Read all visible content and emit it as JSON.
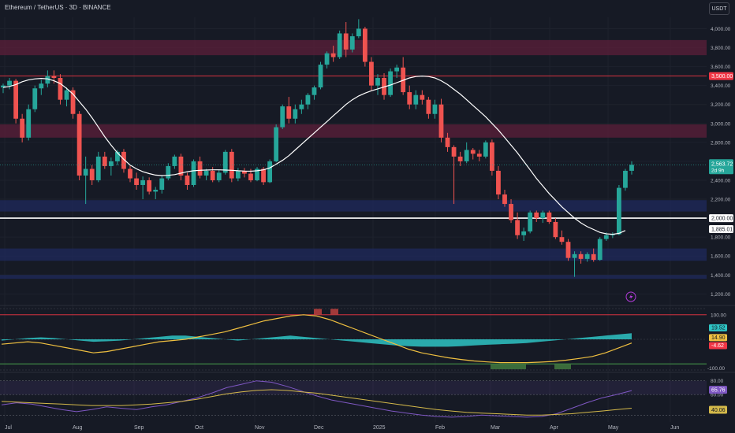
{
  "header": {
    "title": "Ethereum / TetherUS · 3D · BINANCE",
    "currency_button": "USDT"
  },
  "colors": {
    "background": "#161a25",
    "up": "#26a69a",
    "down": "#ef5350",
    "ma_line": "#ffffff",
    "supply_zone": "#5c1f3a",
    "demand_zone": "#1f2a5c",
    "oscillator_signal": "#f0c040",
    "oscillator_hist": "#2ec4c4",
    "rsi_line": "#7e57c2",
    "rsi_ma": "#d4b94a"
  },
  "chart_data": [
    {
      "type": "candlestick",
      "pane": "price",
      "x_tick_labels": [
        "Jul",
        "Aug",
        "Sep",
        "Oct",
        "Nov",
        "Dec",
        "2025",
        "Feb",
        "Mar",
        "Apr",
        "May",
        "Jun"
      ],
      "y_tick_labels": [
        "4,000.00",
        "3,800.00",
        "3,600.00",
        "3,400.00",
        "3,200.00",
        "3,000.00",
        "2,800.00",
        "2,600.00",
        "2,400.00",
        "2,200.00",
        "2,000.00",
        "1,800.00",
        "1,600.00",
        "1,400.00",
        "1,200.00"
      ],
      "y_ticks": [
        4000,
        3800,
        3600,
        3400,
        3200,
        3000,
        2800,
        2600,
        2400,
        2200,
        2000,
        1800,
        1600,
        1400,
        1200
      ],
      "ylim": [
        1120,
        4120
      ],
      "candles": [
        [
          3380,
          3420,
          3320,
          3400
        ],
        [
          3400,
          3480,
          3360,
          3450
        ],
        [
          3450,
          3470,
          3000,
          3050
        ],
        [
          3050,
          3100,
          2800,
          2850
        ],
        [
          2850,
          3200,
          2820,
          3150
        ],
        [
          3150,
          3400,
          3120,
          3370
        ],
        [
          3370,
          3460,
          3300,
          3420
        ],
        [
          3420,
          3560,
          3380,
          3500
        ],
        [
          3500,
          3560,
          3420,
          3480
        ],
        [
          3480,
          3520,
          3200,
          3250
        ],
        [
          3250,
          3380,
          3180,
          3350
        ],
        [
          3350,
          3380,
          3050,
          3100
        ],
        [
          3100,
          3130,
          2400,
          2450
        ],
        [
          2450,
          2650,
          2150,
          2520
        ],
        [
          2520,
          2560,
          2350,
          2400
        ],
        [
          2400,
          2700,
          2380,
          2650
        ],
        [
          2650,
          2700,
          2520,
          2550
        ],
        [
          2550,
          2640,
          2450,
          2600
        ],
        [
          2600,
          2720,
          2560,
          2700
        ],
        [
          2700,
          2730,
          2480,
          2520
        ],
        [
          2520,
          2560,
          2380,
          2420
        ],
        [
          2420,
          2480,
          2300,
          2350
        ],
        [
          2350,
          2440,
          2200,
          2400
        ],
        [
          2400,
          2430,
          2250,
          2280
        ],
        [
          2280,
          2330,
          2200,
          2300
        ],
        [
          2300,
          2450,
          2260,
          2420
        ],
        [
          2420,
          2580,
          2400,
          2550
        ],
        [
          2550,
          2670,
          2520,
          2650
        ],
        [
          2650,
          2680,
          2400,
          2450
        ],
        [
          2450,
          2480,
          2300,
          2350
        ],
        [
          2350,
          2620,
          2330,
          2600
        ],
        [
          2600,
          2650,
          2420,
          2450
        ],
        [
          2450,
          2520,
          2400,
          2500
        ],
        [
          2500,
          2540,
          2380,
          2400
        ],
        [
          2400,
          2510,
          2380,
          2480
        ],
        [
          2480,
          2720,
          2460,
          2700
        ],
        [
          2700,
          2730,
          2380,
          2420
        ],
        [
          2420,
          2530,
          2390,
          2500
        ],
        [
          2500,
          2530,
          2430,
          2470
        ],
        [
          2470,
          2520,
          2380,
          2400
        ],
        [
          2400,
          2540,
          2390,
          2520
        ],
        [
          2520,
          2540,
          2350,
          2380
        ],
        [
          2380,
          2620,
          2370,
          2600
        ],
        [
          2600,
          2990,
          2590,
          2960
        ],
        [
          2960,
          3200,
          2940,
          3180
        ],
        [
          3180,
          3280,
          3000,
          3050
        ],
        [
          3050,
          3200,
          3000,
          3150
        ],
        [
          3150,
          3250,
          3100,
          3200
        ],
        [
          3200,
          3320,
          3150,
          3300
        ],
        [
          3300,
          3400,
          3250,
          3380
        ],
        [
          3380,
          3650,
          3360,
          3620
        ],
        [
          3620,
          3760,
          3580,
          3740
        ],
        [
          3740,
          3820,
          3650,
          3700
        ],
        [
          3700,
          3980,
          3680,
          3950
        ],
        [
          3950,
          4070,
          3700,
          3780
        ],
        [
          3780,
          3950,
          3750,
          3920
        ],
        [
          3920,
          4100,
          3900,
          4000
        ],
        [
          4000,
          4020,
          3600,
          3650
        ],
        [
          3650,
          3700,
          3350,
          3400
        ],
        [
          3400,
          3520,
          3300,
          3480
        ],
        [
          3480,
          3530,
          3250,
          3300
        ],
        [
          3300,
          3580,
          3280,
          3550
        ],
        [
          3550,
          3620,
          3480,
          3590
        ],
        [
          3590,
          3700,
          3300,
          3330
        ],
        [
          3330,
          3400,
          3150,
          3200
        ],
        [
          3200,
          3350,
          3150,
          3300
        ],
        [
          3300,
          3350,
          3200,
          3250
        ],
        [
          3250,
          3280,
          3050,
          3100
        ],
        [
          3100,
          3250,
          3050,
          3200
        ],
        [
          3200,
          3260,
          2800,
          2850
        ],
        [
          2850,
          2900,
          2700,
          2750
        ],
        [
          2750,
          2770,
          2150,
          2650
        ],
        [
          2650,
          2700,
          2550,
          2600
        ],
        [
          2600,
          2800,
          2580,
          2720
        ],
        [
          2720,
          2740,
          2620,
          2680
        ],
        [
          2680,
          2720,
          2600,
          2650
        ],
        [
          2650,
          2820,
          2630,
          2800
        ],
        [
          2800,
          2830,
          2450,
          2500
        ],
        [
          2500,
          2550,
          2200,
          2250
        ],
        [
          2250,
          2300,
          2120,
          2150
        ],
        [
          2150,
          2200,
          1950,
          1980
        ],
        [
          1980,
          2060,
          1780,
          1820
        ],
        [
          1820,
          1900,
          1760,
          1860
        ],
        [
          1860,
          2080,
          1840,
          2060
        ],
        [
          2060,
          2080,
          1960,
          2000
        ],
        [
          2000,
          2080,
          1950,
          2060
        ],
        [
          2060,
          2080,
          1940,
          1960
        ],
        [
          1960,
          2000,
          1780,
          1800
        ],
        [
          1800,
          1870,
          1720,
          1750
        ],
        [
          1750,
          1780,
          1550,
          1580
        ],
        [
          1580,
          1650,
          1380,
          1620
        ],
        [
          1620,
          1650,
          1520,
          1570
        ],
        [
          1570,
          1640,
          1540,
          1620
        ],
        [
          1620,
          1680,
          1540,
          1560
        ],
        [
          1560,
          1800,
          1550,
          1780
        ],
        [
          1780,
          1850,
          1760,
          1820
        ],
        [
          1820,
          1850,
          1790,
          1830
        ],
        [
          1830,
          2350,
          1820,
          2320
        ],
        [
          2320,
          2520,
          2290,
          2500
        ],
        [
          2500,
          2600,
          2460,
          2563.72
        ]
      ],
      "moving_average": [
        3380,
        3390,
        3410,
        3440,
        3460,
        3470,
        3475,
        3470,
        3450,
        3420,
        3370,
        3310,
        3230,
        3150,
        3060,
        2960,
        2860,
        2770,
        2690,
        2620,
        2560,
        2520,
        2490,
        2470,
        2455,
        2450,
        2452,
        2460,
        2475,
        2490,
        2500,
        2505,
        2508,
        2510,
        2510,
        2508,
        2505,
        2500,
        2497,
        2495,
        2500,
        2510,
        2530,
        2570,
        2610,
        2660,
        2720,
        2780,
        2840,
        2900,
        2960,
        3020,
        3080,
        3140,
        3200,
        3250,
        3290,
        3320,
        3345,
        3365,
        3385,
        3405,
        3430,
        3455,
        3480,
        3495,
        3500,
        3495,
        3480,
        3450,
        3410,
        3360,
        3310,
        3250,
        3190,
        3130,
        3070,
        3000,
        2930,
        2850,
        2770,
        2690,
        2600,
        2510,
        2420,
        2340,
        2260,
        2190,
        2120,
        2060,
        2000,
        1950,
        1910,
        1880,
        1850,
        1835,
        1830,
        1840,
        1870
      ],
      "horizontal_lines": [
        {
          "value": 3500,
          "label": "3,500.00",
          "color": "#f23645"
        },
        {
          "value": 2000,
          "label": "2,000.00",
          "color": "#ffffff"
        }
      ],
      "zones": [
        {
          "from": 3720,
          "to": 3880,
          "color": "#5c1f3a"
        },
        {
          "from": 2850,
          "to": 2990,
          "color": "#5c1f3a"
        },
        {
          "from": 2070,
          "to": 2190,
          "color": "#1f2a5c"
        },
        {
          "from": 1550,
          "to": 1680,
          "color": "#1f2a5c"
        },
        {
          "from": 1360,
          "to": 1400,
          "color": "#1f2a5c"
        }
      ],
      "last_price_label": "2,563.72",
      "countdown_label": "2d 9h",
      "ma_value_label": "1,885.01"
    },
    {
      "type": "oscillator",
      "pane": "momentum",
      "y_tick_labels": [
        "100.00",
        "-100.00"
      ],
      "ylim": [
        -125,
        125
      ],
      "upper_band": 100,
      "lower_band": -100,
      "signal_line": [
        -20,
        -15,
        -10,
        -15,
        -25,
        -35,
        -45,
        -55,
        -50,
        -40,
        -30,
        -20,
        -10,
        -5,
        0,
        10,
        20,
        30,
        45,
        60,
        75,
        85,
        95,
        100,
        95,
        80,
        60,
        40,
        20,
        0,
        -20,
        -40,
        -55,
        -65,
        -75,
        -82,
        -88,
        -92,
        -95,
        -95,
        -95,
        -93,
        -90,
        -85,
        -78,
        -70,
        -55,
        -35,
        -15
      ],
      "histogram": [
        -5,
        0,
        5,
        8,
        5,
        0,
        -5,
        -10,
        -8,
        -5,
        0,
        5,
        10,
        15,
        15,
        10,
        5,
        0,
        -5,
        0,
        5,
        10,
        15,
        10,
        5,
        0,
        -5,
        -10,
        -15,
        -20,
        -25,
        -28,
        -30,
        -30,
        -30,
        -28,
        -25,
        -22,
        -20,
        -18,
        -15,
        -10,
        -5,
        0,
        5,
        10,
        15,
        20,
        25
      ],
      "labels": [
        "19.52",
        "14.90",
        "-4.62"
      ]
    },
    {
      "type": "line",
      "pane": "rsi",
      "y_tick_labels": [
        "80.00",
        "60.00"
      ],
      "ylim": [
        20,
        90
      ],
      "rsi": [
        45,
        48,
        46,
        42,
        38,
        35,
        38,
        42,
        40,
        38,
        42,
        45,
        50,
        55,
        62,
        70,
        75,
        80,
        78,
        72,
        65,
        58,
        52,
        48,
        44,
        40,
        36,
        33,
        30,
        28,
        27,
        28,
        30,
        29,
        28,
        27,
        28,
        32,
        40,
        48,
        55,
        60,
        65.76
      ],
      "rsi_ma": [
        50,
        49,
        48,
        47,
        46,
        45,
        44,
        44,
        44,
        45,
        46,
        48,
        50,
        53,
        57,
        61,
        64,
        66,
        67,
        66,
        64,
        62,
        59,
        56,
        53,
        50,
        47,
        44,
        41,
        38,
        36,
        34,
        33,
        32,
        31,
        30,
        30,
        31,
        32,
        34,
        36,
        38,
        40.06
      ],
      "labels": [
        "65.76",
        "40.06"
      ]
    }
  ]
}
